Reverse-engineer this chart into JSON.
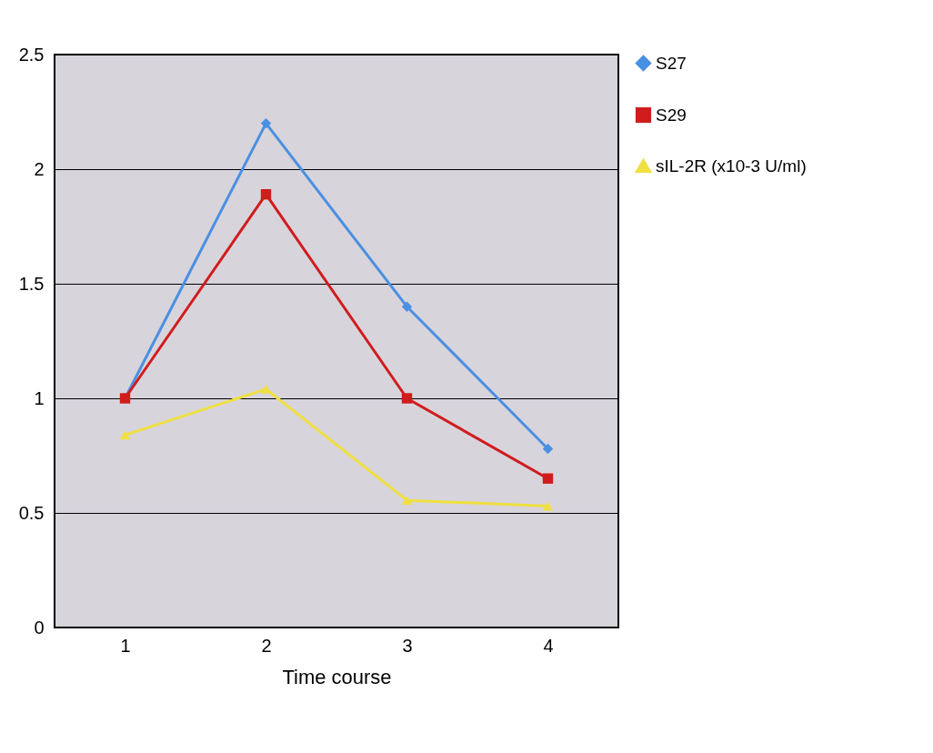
{
  "chart_data": {
    "type": "line",
    "xlabel": "Time course",
    "categories": [
      "1",
      "2",
      "3",
      "4"
    ],
    "series": [
      {
        "name": "S27",
        "color": "#4a90e2",
        "marker": "diamond",
        "values": [
          1.0,
          2.2,
          1.4,
          0.78
        ]
      },
      {
        "name": "S29",
        "color": "#d01c1c",
        "marker": "square",
        "values": [
          1.0,
          1.89,
          1.0,
          0.65
        ]
      },
      {
        "name": "sIL-2R (x10-3 U/ml)",
        "color": "#f0e040",
        "marker": "triangle",
        "values": [
          0.84,
          1.04,
          0.555,
          0.53
        ]
      }
    ],
    "ylim": [
      0,
      2.5
    ],
    "yticks": [
      0,
      0.5,
      1,
      1.5,
      2,
      2.5
    ],
    "grid": "y",
    "legend": "right"
  }
}
